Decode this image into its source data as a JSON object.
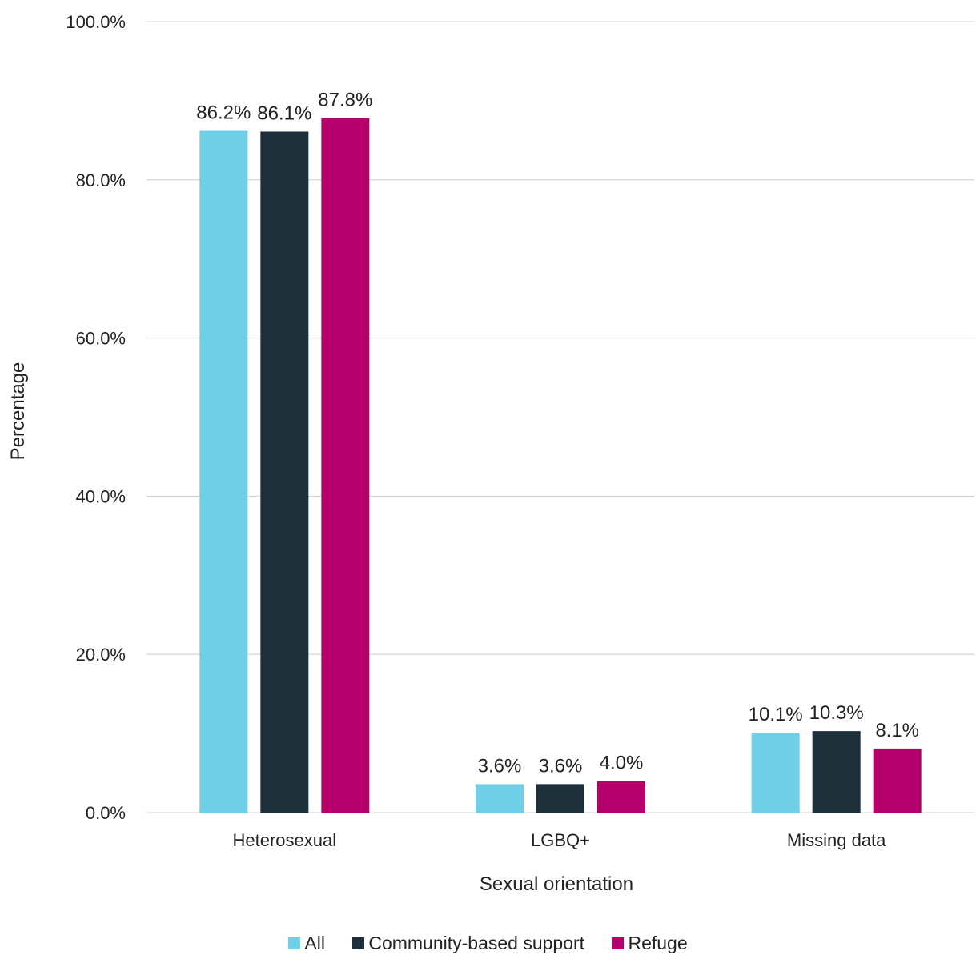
{
  "chart_data": {
    "type": "bar",
    "categories": [
      "Heterosexual",
      "LGBQ+",
      "Missing data"
    ],
    "series": [
      {
        "name": "All",
        "values": [
          86.2,
          3.6,
          10.1
        ],
        "labels": [
          "86.2%",
          "3.6%",
          "10.1%"
        ],
        "color": "#6fcfe7"
      },
      {
        "name": "Community-based support",
        "values": [
          86.1,
          3.6,
          10.3
        ],
        "labels": [
          "86.1%",
          "3.6%",
          "10.3%"
        ],
        "color": "#1d2f38"
      },
      {
        "name": "Refuge",
        "values": [
          87.8,
          4.0,
          8.1
        ],
        "labels": [
          "87.8%",
          "4.0%",
          "8.1%"
        ],
        "color": "#b5006b"
      }
    ],
    "xlabel": "Sexual orientation",
    "ylabel": "Percentage",
    "ylim": [
      0,
      100
    ],
    "yticks": [
      "0.0%",
      "20.0%",
      "40.0%",
      "60.0%",
      "80.0%",
      "100.0%"
    ],
    "grid": true,
    "legend_position": "bottom"
  }
}
